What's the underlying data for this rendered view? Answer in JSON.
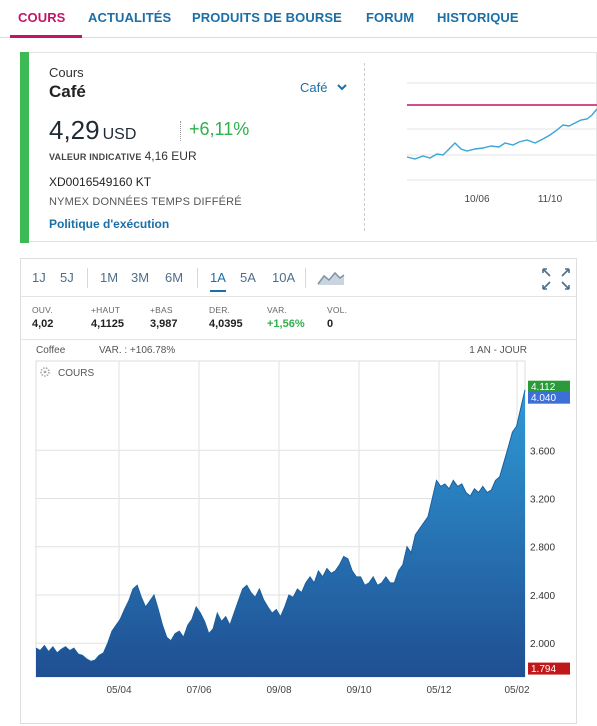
{
  "nav": {
    "tabs": [
      {
        "label": "COURS",
        "active": true
      },
      {
        "label": "ACTUALITÉS"
      },
      {
        "label": "PRODUITS DE BOURSE"
      },
      {
        "label": "FORUM"
      },
      {
        "label": "HISTORIQUE"
      }
    ]
  },
  "quote": {
    "label": "Cours",
    "name": "Café",
    "selector": "Café",
    "price": "4,29",
    "currency": "USD",
    "change": "+6,11%",
    "indicative_label": "VALEUR INDICATIVE",
    "indicative_value": "4,16 EUR",
    "isin": "XD0016549160 KT",
    "market": "NYMEX DONNÉES TEMPS DIFFÉRÉ",
    "link": "Politique d'exécution",
    "colors": {
      "accent": "#c4146a",
      "up": "#2fb14b",
      "link": "#1a6fa8",
      "bar": "#3cba54"
    }
  },
  "mini_chart_data": {
    "type": "line",
    "x_ticks": [
      "10/06",
      "11/10"
    ],
    "reference_color": "#c4146a",
    "line_color": "#3aa6d6"
  },
  "periods": [
    {
      "label": "1J"
    },
    {
      "label": "5J"
    },
    {
      "label": "1M"
    },
    {
      "label": "3M"
    },
    {
      "label": "6M"
    },
    {
      "label": "1A",
      "active": true
    },
    {
      "label": "5A"
    },
    {
      "label": "10A"
    }
  ],
  "icons": {
    "chart_type": "area-chart-icon",
    "fullscreen": "fullscreen-icon",
    "settings": "gear-icon",
    "dropdown": "chevron-down-icon"
  },
  "stats": [
    {
      "key": "OUV.",
      "value": "4,02"
    },
    {
      "key": "+HAUT",
      "value": "4,1125"
    },
    {
      "key": "+BAS",
      "value": "3,987"
    },
    {
      "key": "DER.",
      "value": "4,0395"
    },
    {
      "key": "VAR.",
      "value": "+1,56%",
      "up": true
    },
    {
      "key": "VOL.",
      "value": "0"
    }
  ],
  "chart_data": {
    "type": "area",
    "instrument": "Coffee",
    "variation": "VAR. : +106.78%",
    "range_label": "1 AN - JOUR",
    "series_label": "COURS",
    "x_ticks": [
      "05/04",
      "07/06",
      "09/08",
      "09/10",
      "05/12",
      "05/02"
    ],
    "y_ticks": [
      2.0,
      2.4,
      2.8,
      3.2,
      3.6
    ],
    "y_tick_labels": [
      "2.000",
      "2.400",
      "2.800",
      "3.200",
      "3.600"
    ],
    "ylim": [
      1.72,
      4.34
    ],
    "price_tags": [
      {
        "value": 4.112,
        "label": "4.112",
        "color": "#2b9a3a"
      },
      {
        "value": 4.04,
        "label": "4.040",
        "color": "#3d6fd8"
      },
      {
        "value": 1.794,
        "label": "1.794",
        "color": "#c01818"
      }
    ],
    "values": [
      1.96,
      1.94,
      1.98,
      1.93,
      1.97,
      1.92,
      1.95,
      1.97,
      1.94,
      1.96,
      1.91,
      1.9,
      1.87,
      1.85,
      1.86,
      1.9,
      1.92,
      2.0,
      2.1,
      2.15,
      2.2,
      2.28,
      2.35,
      2.45,
      2.48,
      2.38,
      2.3,
      2.35,
      2.4,
      2.28,
      2.15,
      2.05,
      2.02,
      2.08,
      2.1,
      2.05,
      2.15,
      2.2,
      2.3,
      2.25,
      2.18,
      2.08,
      2.12,
      2.25,
      2.18,
      2.22,
      2.15,
      2.25,
      2.35,
      2.45,
      2.48,
      2.42,
      2.38,
      2.45,
      2.36,
      2.3,
      2.25,
      2.28,
      2.22,
      2.3,
      2.4,
      2.38,
      2.45,
      2.42,
      2.5,
      2.55,
      2.5,
      2.6,
      2.55,
      2.62,
      2.58,
      2.6,
      2.65,
      2.72,
      2.7,
      2.6,
      2.55,
      2.55,
      2.48,
      2.5,
      2.55,
      2.48,
      2.5,
      2.55,
      2.5,
      2.5,
      2.6,
      2.65,
      2.8,
      2.75,
      2.9,
      2.95,
      3.0,
      3.05,
      3.2,
      3.35,
      3.3,
      3.32,
      3.28,
      3.35,
      3.3,
      3.32,
      3.25,
      3.22,
      3.28,
      3.25,
      3.3,
      3.25,
      3.27,
      3.35,
      3.38,
      3.5,
      3.62,
      3.75,
      3.8,
      3.95,
      4.1
    ]
  }
}
